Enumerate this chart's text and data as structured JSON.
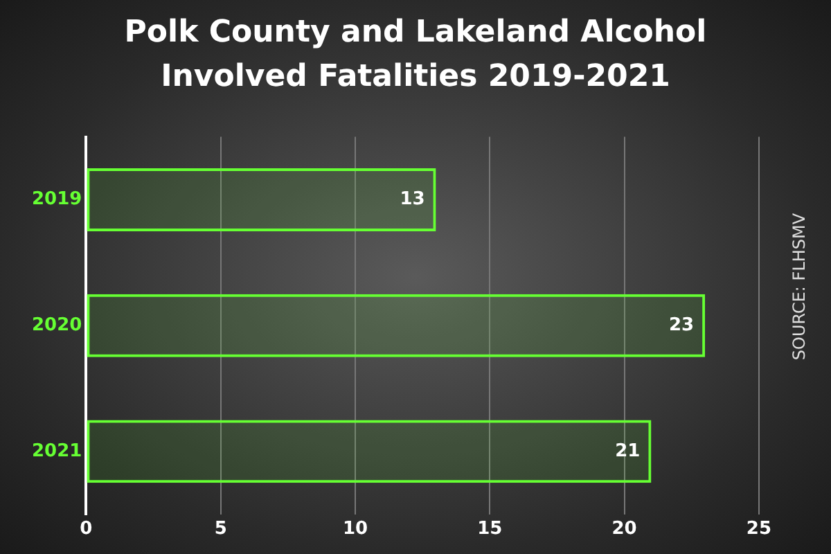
{
  "chart_data": {
    "type": "bar",
    "orientation": "horizontal",
    "title": "Polk County and Lakeland Alcohol Involved Fatalities 2019-2021",
    "categories": [
      "2019",
      "2020",
      "2021"
    ],
    "values": [
      13,
      23,
      21
    ],
    "color": "#66ff33",
    "xlim": [
      0,
      25
    ],
    "xticks": [
      0,
      5,
      10,
      15,
      20,
      25
    ],
    "grid": "x",
    "data_labels": true,
    "legend": false,
    "annotations": [
      "SOURCE: FLHSMV"
    ]
  }
}
